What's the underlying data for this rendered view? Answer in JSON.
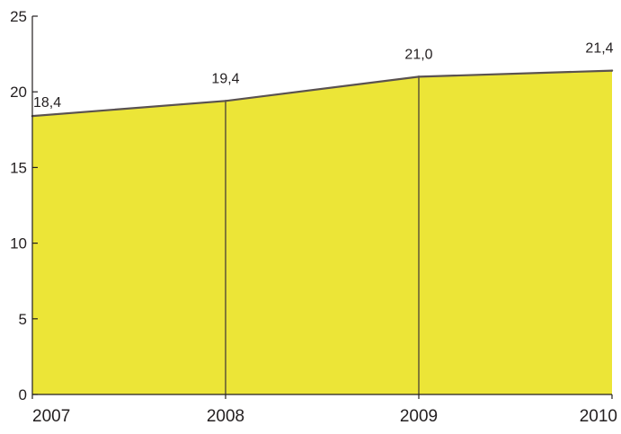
{
  "chart_data": {
    "type": "area",
    "categories": [
      "2007",
      "2008",
      "2009",
      "2010"
    ],
    "values": [
      18.4,
      19.4,
      21.0,
      21.4
    ],
    "data_labels": [
      "18,4",
      "19,4",
      "21,0",
      "21,4"
    ],
    "ylim": [
      0,
      25
    ],
    "yticks": [
      0,
      5,
      10,
      15,
      20,
      25
    ],
    "ytick_labels": [
      "0",
      "5",
      "10",
      "15",
      "20",
      "25"
    ],
    "title": "",
    "xlabel": "",
    "ylabel": "",
    "grid": false,
    "legend": "none",
    "colors": {
      "fill": "#ece537",
      "line": "#5a5250",
      "divider": "#3b3335",
      "axis": "#231f20",
      "text": "#231f20"
    }
  }
}
